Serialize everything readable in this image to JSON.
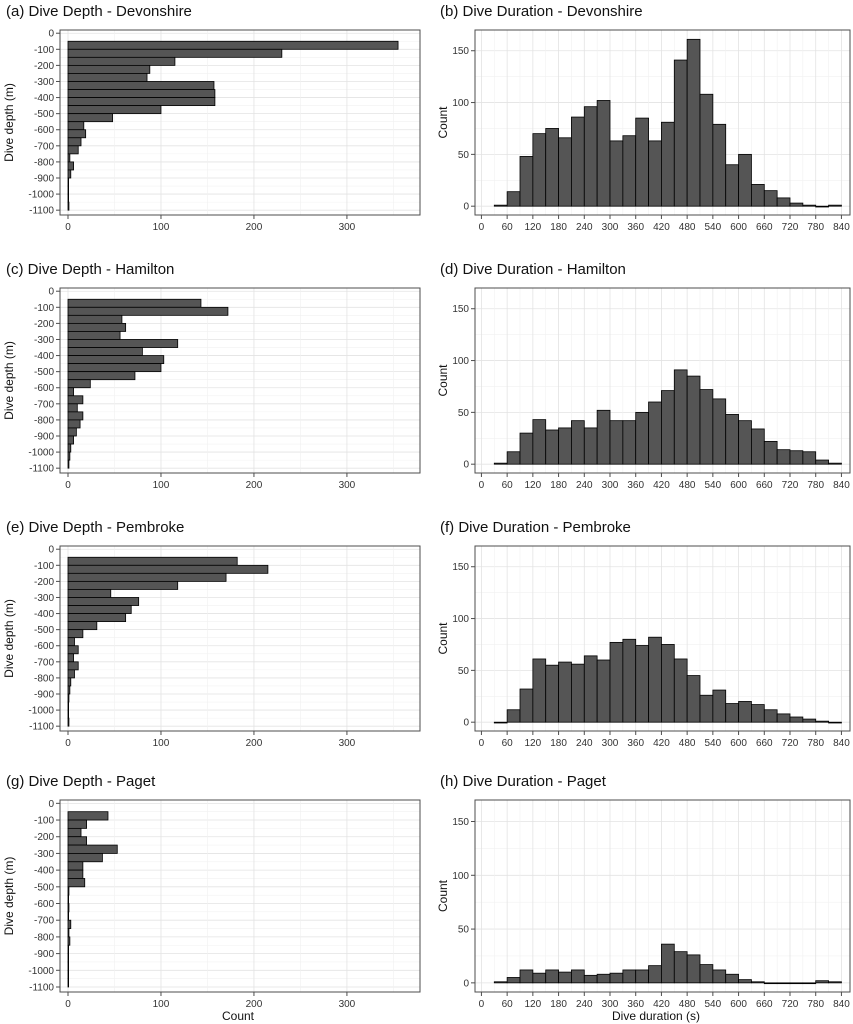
{
  "figure": {
    "depth_axis_label": "Dive depth (m)",
    "depth_x_label": "Count",
    "duration_axis_label": "Count",
    "duration_x_label": "Dive duration (s)"
  },
  "chart_data": [
    {
      "id": "a",
      "type": "bar",
      "orientation": "horizontal",
      "title": "(a) Dive Depth - Devonshire",
      "ylabel": "Dive depth (m)",
      "xlabel": "",
      "ylim": [
        -1100,
        0
      ],
      "xlim": [
        0,
        370
      ],
      "yticks": [
        0,
        -100,
        -200,
        -300,
        -400,
        -500,
        -600,
        -700,
        -800,
        -900,
        -1000,
        -1100
      ],
      "xticks": [
        0,
        100,
        200,
        300
      ],
      "bin_width": 50,
      "bin_tops": [
        -50,
        -100,
        -150,
        -200,
        -250,
        -300,
        -350,
        -400,
        -450,
        -500,
        -550,
        -600,
        -650,
        -700,
        -750,
        -800,
        -850,
        -900,
        -950,
        -1000,
        -1050
      ],
      "values": [
        355,
        230,
        115,
        88,
        85,
        157,
        158,
        158,
        100,
        48,
        17,
        19,
        14,
        11,
        2,
        6,
        3,
        0,
        0,
        0,
        1
      ]
    },
    {
      "id": "b",
      "type": "bar",
      "title": "(b) Dive Duration - Devonshire",
      "xlabel": "",
      "ylabel": "Count",
      "xlim": [
        0,
        840
      ],
      "ylim": [
        0,
        170
      ],
      "xticks": [
        0,
        60,
        120,
        180,
        240,
        300,
        360,
        420,
        480,
        540,
        600,
        660,
        720,
        780,
        840
      ],
      "yticks": [
        0,
        50,
        100,
        150
      ],
      "bin_width": 30,
      "bin_starts": [
        30,
        60,
        90,
        120,
        150,
        180,
        210,
        240,
        270,
        300,
        330,
        360,
        390,
        420,
        450,
        480,
        510,
        540,
        570,
        600,
        630,
        660,
        690,
        720,
        750,
        780,
        810
      ],
      "values": [
        1,
        14,
        48,
        70,
        75,
        66,
        86,
        96,
        102,
        63,
        68,
        85,
        63,
        81,
        141,
        161,
        108,
        79,
        40,
        50,
        21,
        15,
        8,
        3,
        1,
        0,
        1
      ]
    },
    {
      "id": "c",
      "type": "bar",
      "orientation": "horizontal",
      "title": "(c) Dive Depth - Hamilton",
      "ylabel": "Dive depth (m)",
      "xlabel": "",
      "ylim": [
        -1100,
        0
      ],
      "xlim": [
        0,
        370
      ],
      "yticks": [
        0,
        -100,
        -200,
        -300,
        -400,
        -500,
        -600,
        -700,
        -800,
        -900,
        -1000,
        -1100
      ],
      "xticks": [
        0,
        100,
        200,
        300
      ],
      "bin_width": 50,
      "bin_tops": [
        -50,
        -100,
        -150,
        -200,
        -250,
        -300,
        -350,
        -400,
        -450,
        -500,
        -550,
        -600,
        -650,
        -700,
        -750,
        -800,
        -850,
        -900,
        -950,
        -1000,
        -1050
      ],
      "values": [
        143,
        172,
        58,
        62,
        56,
        118,
        80,
        103,
        100,
        72,
        24,
        6,
        16,
        10,
        16,
        13,
        9,
        6,
        3,
        2,
        1
      ]
    },
    {
      "id": "d",
      "type": "bar",
      "title": "(d) Dive Duration - Hamilton",
      "xlabel": "",
      "ylabel": "Count",
      "xlim": [
        0,
        840
      ],
      "ylim": [
        0,
        170
      ],
      "xticks": [
        0,
        60,
        120,
        180,
        240,
        300,
        360,
        420,
        480,
        540,
        600,
        660,
        720,
        780,
        840
      ],
      "yticks": [
        0,
        50,
        100,
        150
      ],
      "bin_width": 30,
      "bin_starts": [
        30,
        60,
        90,
        120,
        150,
        180,
        210,
        240,
        270,
        300,
        330,
        360,
        390,
        420,
        450,
        480,
        510,
        540,
        570,
        600,
        630,
        660,
        690,
        720,
        750,
        780,
        810
      ],
      "values": [
        1,
        12,
        30,
        43,
        33,
        35,
        42,
        35,
        52,
        42,
        42,
        50,
        60,
        71,
        91,
        85,
        72,
        63,
        48,
        42,
        34,
        22,
        14,
        13,
        12,
        4,
        1
      ]
    },
    {
      "id": "e",
      "type": "bar",
      "orientation": "horizontal",
      "title": "(e) Dive Depth - Pembroke",
      "ylabel": "Dive depth (m)",
      "xlabel": "",
      "ylim": [
        -1100,
        0
      ],
      "xlim": [
        0,
        370
      ],
      "yticks": [
        0,
        -100,
        -200,
        -300,
        -400,
        -500,
        -600,
        -700,
        -800,
        -900,
        -1000,
        -1100
      ],
      "xticks": [
        0,
        100,
        200,
        300
      ],
      "bin_width": 50,
      "bin_tops": [
        -50,
        -100,
        -150,
        -200,
        -250,
        -300,
        -350,
        -400,
        -450,
        -500,
        -550,
        -600,
        -650,
        -700,
        -750,
        -800,
        -850,
        -900,
        -950,
        -1000,
        -1050
      ],
      "values": [
        182,
        215,
        170,
        118,
        46,
        76,
        68,
        62,
        31,
        16,
        7,
        11,
        6,
        11,
        7,
        3,
        2,
        1,
        0,
        0,
        1
      ]
    },
    {
      "id": "f",
      "type": "bar",
      "title": "(f) Dive Duration - Pembroke",
      "xlabel": "",
      "ylabel": "Count",
      "xlim": [
        0,
        840
      ],
      "ylim": [
        0,
        170
      ],
      "xticks": [
        0,
        60,
        120,
        180,
        240,
        300,
        360,
        420,
        480,
        540,
        600,
        660,
        720,
        780,
        840
      ],
      "yticks": [
        0,
        50,
        100,
        150
      ],
      "bin_width": 30,
      "bin_starts": [
        30,
        60,
        90,
        120,
        150,
        180,
        210,
        240,
        270,
        300,
        330,
        360,
        390,
        420,
        450,
        480,
        510,
        540,
        570,
        600,
        630,
        660,
        690,
        720,
        750,
        780,
        810
      ],
      "values": [
        0,
        12,
        32,
        61,
        55,
        58,
        56,
        64,
        60,
        77,
        80,
        74,
        82,
        75,
        61,
        45,
        26,
        31,
        18,
        20,
        17,
        12,
        8,
        5,
        3,
        1,
        0
      ]
    },
    {
      "id": "g",
      "type": "bar",
      "orientation": "horizontal",
      "title": "(g) Dive Depth - Paget",
      "ylabel": "Dive depth (m)",
      "xlabel": "Count",
      "ylim": [
        -1100,
        0
      ],
      "xlim": [
        0,
        370
      ],
      "yticks": [
        0,
        -100,
        -200,
        -300,
        -400,
        -500,
        -600,
        -700,
        -800,
        -900,
        -1000,
        -1100
      ],
      "xticks": [
        0,
        100,
        200,
        300
      ],
      "bin_width": 50,
      "bin_tops": [
        -50,
        -100,
        -150,
        -200,
        -250,
        -300,
        -350,
        -400,
        -450,
        -500,
        -550,
        -600,
        -650,
        -700,
        -750,
        -800,
        -850,
        -900,
        -950,
        -1000,
        -1050
      ],
      "values": [
        43,
        20,
        14,
        20,
        53,
        37,
        16,
        16,
        18,
        1,
        0,
        1,
        0,
        3,
        1,
        2,
        0,
        0,
        0,
        0,
        0
      ]
    },
    {
      "id": "h",
      "type": "bar",
      "title": "(h) Dive Duration - Paget",
      "xlabel": "Dive duration (s)",
      "ylabel": "Count",
      "xlim": [
        0,
        840
      ],
      "ylim": [
        0,
        170
      ],
      "xticks": [
        0,
        60,
        120,
        180,
        240,
        300,
        360,
        420,
        480,
        540,
        600,
        660,
        720,
        780,
        840
      ],
      "yticks": [
        0,
        50,
        100,
        150
      ],
      "bin_width": 30,
      "bin_starts": [
        30,
        60,
        90,
        120,
        150,
        180,
        210,
        240,
        270,
        300,
        330,
        360,
        390,
        420,
        450,
        480,
        510,
        540,
        570,
        600,
        630,
        660,
        690,
        720,
        750,
        780,
        810
      ],
      "values": [
        1,
        5,
        12,
        9,
        12,
        10,
        12,
        7,
        8,
        9,
        12,
        12,
        16,
        36,
        29,
        26,
        17,
        12,
        8,
        3,
        1,
        0,
        0,
        0,
        0,
        2,
        1
      ]
    }
  ]
}
